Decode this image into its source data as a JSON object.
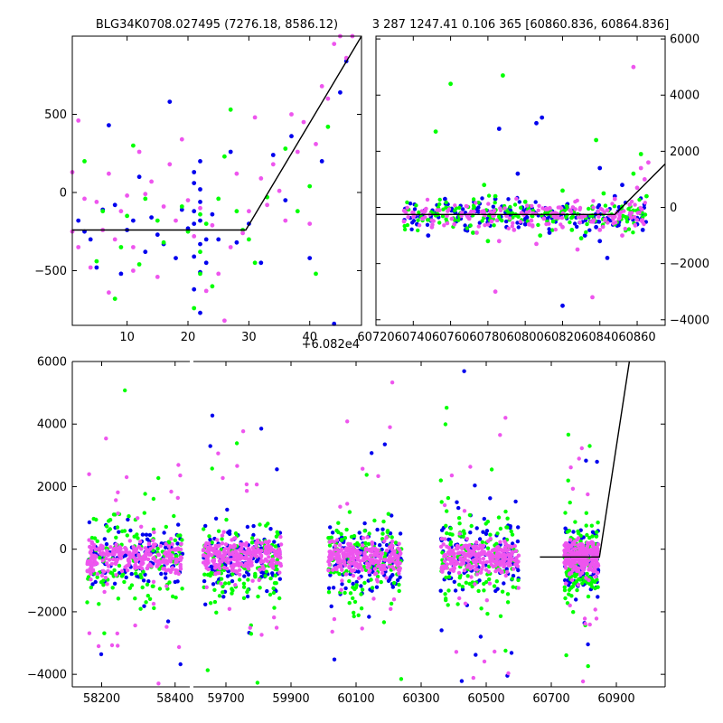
{
  "chart_data": [
    {
      "type": "scatter",
      "panel": "top-left",
      "title": "BLG34K0708.027495 (7276.18, 8586.12)",
      "x_offset_label": "+6.082e4",
      "xlabel": "",
      "ylabel": "",
      "xlim": [
        1,
        48.5
      ],
      "ylim": [
        -850,
        1000
      ],
      "xticks": [
        10,
        20,
        30,
        40
      ],
      "yticks": [
        -500,
        0,
        500
      ],
      "x_offset_value": 60820,
      "model_line": [
        [
          1,
          -240
        ],
        [
          29.5,
          -240
        ],
        [
          48.5,
          1000
        ]
      ],
      "series": [
        {
          "color": "#0000ee",
          "points": [
            [
              2,
              -180
            ],
            [
              3,
              -250
            ],
            [
              4,
              -300
            ],
            [
              5,
              -480
            ],
            [
              6,
              -110
            ],
            [
              7,
              430
            ],
            [
              8,
              -80
            ],
            [
              9,
              -520
            ],
            [
              10,
              -240
            ],
            [
              11,
              -180
            ],
            [
              12,
              100
            ],
            [
              13,
              -380
            ],
            [
              14,
              -160
            ],
            [
              15,
              -270
            ],
            [
              16,
              -330
            ],
            [
              17,
              580
            ],
            [
              18,
              -420
            ],
            [
              19,
              -110
            ],
            [
              20,
              -230
            ],
            [
              21,
              -620
            ],
            [
              21,
              -410
            ],
            [
              21,
              -200
            ],
            [
              21,
              -120
            ],
            [
              21,
              60
            ],
            [
              21,
              130
            ],
            [
              22,
              -770
            ],
            [
              22,
              -510
            ],
            [
              22,
              -330
            ],
            [
              22,
              -180
            ],
            [
              22,
              -60
            ],
            [
              22,
              20
            ],
            [
              22,
              200
            ],
            [
              23,
              -450
            ],
            [
              23,
              -300
            ],
            [
              24,
              -140
            ],
            [
              25,
              -300
            ],
            [
              27,
              260
            ],
            [
              28,
              -320
            ],
            [
              30,
              -200
            ],
            [
              32,
              -450
            ],
            [
              34,
              240
            ],
            [
              36,
              -50
            ],
            [
              37,
              360
            ],
            [
              40,
              -420
            ],
            [
              42,
              200
            ],
            [
              44,
              -840
            ],
            [
              45,
              640
            ],
            [
              46,
              840
            ]
          ]
        },
        {
          "color": "#00ff00",
          "points": [
            [
              3,
              200
            ],
            [
              5,
              -440
            ],
            [
              6,
              -120
            ],
            [
              8,
              -680
            ],
            [
              9,
              -350
            ],
            [
              10,
              -150
            ],
            [
              11,
              300
            ],
            [
              12,
              -460
            ],
            [
              13,
              -40
            ],
            [
              15,
              -180
            ],
            [
              16,
              -320
            ],
            [
              19,
              -90
            ],
            [
              20,
              -250
            ],
            [
              21,
              -740
            ],
            [
              22,
              -520
            ],
            [
              22,
              -380
            ],
            [
              22,
              -140
            ],
            [
              23,
              -200
            ],
            [
              24,
              -600
            ],
            [
              25,
              -40
            ],
            [
              26,
              230
            ],
            [
              27,
              530
            ],
            [
              28,
              -120
            ],
            [
              29,
              -240
            ],
            [
              30,
              -300
            ],
            [
              31,
              -450
            ],
            [
              33,
              -30
            ],
            [
              36,
              280
            ],
            [
              38,
              -120
            ],
            [
              40,
              40
            ],
            [
              41,
              -520
            ],
            [
              43,
              420
            ]
          ]
        },
        {
          "color": "#ee55ee",
          "points": [
            [
              1,
              -250
            ],
            [
              1,
              130
            ],
            [
              2,
              -350
            ],
            [
              2,
              460
            ],
            [
              3,
              -40
            ],
            [
              4,
              -480
            ],
            [
              5,
              -60
            ],
            [
              6,
              -240
            ],
            [
              7,
              120
            ],
            [
              7,
              -640
            ],
            [
              8,
              -300
            ],
            [
              9,
              -120
            ],
            [
              10,
              -20
            ],
            [
              11,
              -350
            ],
            [
              11,
              -500
            ],
            [
              12,
              260
            ],
            [
              13,
              -10
            ],
            [
              14,
              70
            ],
            [
              15,
              -540
            ],
            [
              16,
              -90
            ],
            [
              17,
              180
            ],
            [
              18,
              -180
            ],
            [
              19,
              340
            ],
            [
              20,
              -50
            ],
            [
              21,
              -280
            ],
            [
              22,
              -100
            ],
            [
              23,
              -630
            ],
            [
              24,
              -210
            ],
            [
              25,
              -520
            ],
            [
              26,
              -820
            ],
            [
              27,
              -350
            ],
            [
              28,
              120
            ],
            [
              29,
              -260
            ],
            [
              30,
              -120
            ],
            [
              31,
              480
            ],
            [
              32,
              90
            ],
            [
              33,
              -80
            ],
            [
              34,
              180
            ],
            [
              35,
              10
            ],
            [
              36,
              -180
            ],
            [
              37,
              500
            ],
            [
              38,
              260
            ],
            [
              39,
              450
            ],
            [
              40,
              -200
            ],
            [
              41,
              310
            ],
            [
              42,
              680
            ],
            [
              43,
              600
            ],
            [
              44,
              950
            ],
            [
              45,
              1000
            ],
            [
              46,
              860
            ],
            [
              47,
              1000
            ]
          ]
        }
      ]
    },
    {
      "type": "scatter",
      "panel": "top-right",
      "title": "3 287 1247.41 0.106 365 [60860.836, 60864.836]",
      "xlabel": "",
      "ylabel": "",
      "xlim": [
        60720,
        60875
      ],
      "ylim": [
        -4200,
        6100
      ],
      "xticks": [
        60720,
        60740,
        60760,
        60780,
        60800,
        60820,
        60840,
        60860
      ],
      "yticks": [
        -4000,
        -2000,
        0,
        2000,
        4000,
        6000
      ],
      "model_line": [
        [
          60720,
          -250
        ],
        [
          60848,
          -250
        ],
        [
          60875,
          1550
        ]
      ],
      "series": [
        {
          "color": "#0000ee",
          "points": [
            [
              60742,
              -600
            ],
            [
              60748,
              -1000
            ],
            [
              60752,
              -200
            ],
            [
              60757,
              300
            ],
            [
              60763,
              -500
            ],
            [
              60768,
              -800
            ],
            [
              60775,
              -150
            ],
            [
              60780,
              -400
            ],
            [
              60784,
              300
            ],
            [
              60786,
              2800
            ],
            [
              60790,
              -700
            ],
            [
              60796,
              1200
            ],
            [
              60800,
              -600
            ],
            [
              60806,
              3000
            ],
            [
              60809,
              3200
            ],
            [
              60813,
              -900
            ],
            [
              60818,
              -300
            ],
            [
              60820,
              -3500
            ],
            [
              60826,
              -200
            ],
            [
              60832,
              -1000
            ],
            [
              60836,
              -500
            ],
            [
              60838,
              -700
            ],
            [
              60840,
              1400
            ],
            [
              60840,
              -1200
            ],
            [
              60842,
              -400
            ],
            [
              60844,
              -1800
            ],
            [
              60848,
              400
            ],
            [
              60852,
              800
            ],
            [
              60856,
              -300
            ],
            [
              60860,
              -600
            ],
            [
              60863,
              -800
            ]
          ]
        },
        {
          "color": "#00ff00",
          "points": [
            [
              60752,
              2700
            ],
            [
              60760,
              4400
            ],
            [
              60765,
              -300
            ],
            [
              60772,
              -900
            ],
            [
              60778,
              800
            ],
            [
              60780,
              -1200
            ],
            [
              60784,
              400
            ],
            [
              60788,
              4700
            ],
            [
              60790,
              -100
            ],
            [
              60796,
              -300
            ],
            [
              60800,
              200
            ],
            [
              60808,
              -1000
            ],
            [
              60812,
              -200
            ],
            [
              60815,
              -500
            ],
            [
              60820,
              600
            ],
            [
              60825,
              -800
            ],
            [
              60830,
              -1100
            ],
            [
              60835,
              -300
            ],
            [
              60838,
              2400
            ],
            [
              60842,
              500
            ],
            [
              60848,
              -600
            ],
            [
              60852,
              -100
            ],
            [
              60858,
              1200
            ],
            [
              60862,
              1900
            ],
            [
              60865,
              400
            ]
          ]
        },
        {
          "color": "#ee55ee",
          "points": [
            [
              60735,
              -500
            ],
            [
              60740,
              -200
            ],
            [
              60745,
              -400
            ],
            [
              60750,
              -700
            ],
            [
              60754,
              -100
            ],
            [
              60758,
              -300
            ],
            [
              60762,
              -600
            ],
            [
              60766,
              -200
            ],
            [
              60770,
              -400
            ],
            [
              60774,
              -900
            ],
            [
              60778,
              -200
            ],
            [
              60782,
              -500
            ],
            [
              60784,
              -3000
            ],
            [
              60786,
              -1200
            ],
            [
              60790,
              -300
            ],
            [
              60794,
              -800
            ],
            [
              60798,
              -200
            ],
            [
              60802,
              -600
            ],
            [
              60806,
              -1300
            ],
            [
              60810,
              -400
            ],
            [
              60812,
              -4400
            ],
            [
              60816,
              -200
            ],
            [
              60820,
              -700
            ],
            [
              60824,
              -100
            ],
            [
              60828,
              -1500
            ],
            [
              60832,
              -300
            ],
            [
              60836,
              -3200
            ],
            [
              60840,
              -800
            ],
            [
              60844,
              -100
            ],
            [
              60848,
              300
            ],
            [
              60852,
              -1000
            ],
            [
              60856,
              100
            ],
            [
              60858,
              5000
            ],
            [
              60860,
              700
            ],
            [
              60862,
              1400
            ],
            [
              60864,
              1000
            ],
            [
              60866,
              1600
            ]
          ]
        }
      ]
    },
    {
      "type": "scatter",
      "panel": "bottom",
      "title": "",
      "xlabel": "",
      "ylabel": "",
      "ylim": [
        -4400,
        6000
      ],
      "yticks": [
        -4000,
        -2000,
        0,
        2000,
        4000,
        6000
      ],
      "segments": [
        {
          "xlim": [
            58120,
            58440
          ],
          "xticks": [
            58200,
            58400
          ]
        },
        {
          "xlim": [
            59600,
            61050
          ],
          "xticks": [
            59700,
            59900,
            60100,
            60300,
            60500,
            60700,
            60900
          ]
        }
      ],
      "clusters": [
        {
          "x_range": [
            58160,
            58420
          ],
          "spread": 1200
        },
        {
          "x_range": [
            59630,
            59870
          ],
          "spread": 1500
        },
        {
          "x_range": [
            60015,
            60240
          ],
          "spread": 1700
        },
        {
          "x_range": [
            60360,
            60600
          ],
          "spread": 1500
        },
        {
          "x_range": [
            60740,
            60845
          ],
          "spread": 1300
        }
      ],
      "series_colors": [
        "#0000ee",
        "#00ff00",
        "#ee55ee"
      ],
      "model_line": [
        [
          60665,
          -250
        ],
        [
          60848,
          -250
        ],
        [
          60940,
          6000
        ]
      ]
    }
  ]
}
